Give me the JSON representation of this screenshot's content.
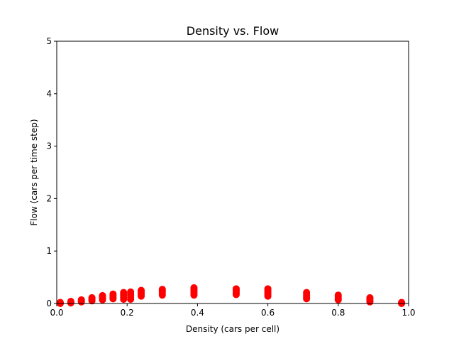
{
  "chart_data": {
    "type": "scatter",
    "title": "Density vs. Flow",
    "xlabel": "Density (cars per cell)",
    "ylabel": "Flow (cars per time step)",
    "xlim": [
      0,
      1
    ],
    "ylim": [
      0,
      5
    ],
    "xticks": [
      0.0,
      0.2,
      0.4,
      0.6,
      0.8,
      1.0
    ],
    "xtick_labels": [
      "0.0",
      "0.2",
      "0.4",
      "0.6",
      "0.8",
      "1.0"
    ],
    "yticks": [
      0,
      1,
      2,
      3,
      4,
      5
    ],
    "ytick_labels": [
      "0",
      "1",
      "2",
      "3",
      "4",
      "5"
    ],
    "grid": false,
    "series": [
      {
        "color": "#ff0000",
        "marker": "circle",
        "points": [
          {
            "x": 0.01,
            "y": 0.0
          },
          {
            "x": 0.01,
            "y": 0.01
          },
          {
            "x": 0.01,
            "y": 0.02
          },
          {
            "x": 0.04,
            "y": 0.01
          },
          {
            "x": 0.04,
            "y": 0.02
          },
          {
            "x": 0.04,
            "y": 0.04
          },
          {
            "x": 0.07,
            "y": 0.03
          },
          {
            "x": 0.07,
            "y": 0.05
          },
          {
            "x": 0.07,
            "y": 0.07
          },
          {
            "x": 0.1,
            "y": 0.05
          },
          {
            "x": 0.1,
            "y": 0.07
          },
          {
            "x": 0.1,
            "y": 0.09
          },
          {
            "x": 0.1,
            "y": 0.11
          },
          {
            "x": 0.13,
            "y": 0.07
          },
          {
            "x": 0.13,
            "y": 0.1
          },
          {
            "x": 0.13,
            "y": 0.13
          },
          {
            "x": 0.13,
            "y": 0.15
          },
          {
            "x": 0.16,
            "y": 0.09
          },
          {
            "x": 0.16,
            "y": 0.12
          },
          {
            "x": 0.16,
            "y": 0.15
          },
          {
            "x": 0.16,
            "y": 0.18
          },
          {
            "x": 0.19,
            "y": 0.08
          },
          {
            "x": 0.19,
            "y": 0.12
          },
          {
            "x": 0.19,
            "y": 0.16
          },
          {
            "x": 0.19,
            "y": 0.19
          },
          {
            "x": 0.19,
            "y": 0.21
          },
          {
            "x": 0.21,
            "y": 0.08
          },
          {
            "x": 0.21,
            "y": 0.12
          },
          {
            "x": 0.21,
            "y": 0.16
          },
          {
            "x": 0.21,
            "y": 0.19
          },
          {
            "x": 0.21,
            "y": 0.22
          },
          {
            "x": 0.24,
            "y": 0.14
          },
          {
            "x": 0.24,
            "y": 0.17
          },
          {
            "x": 0.24,
            "y": 0.2
          },
          {
            "x": 0.24,
            "y": 0.23
          },
          {
            "x": 0.24,
            "y": 0.25
          },
          {
            "x": 0.3,
            "y": 0.16
          },
          {
            "x": 0.3,
            "y": 0.19
          },
          {
            "x": 0.3,
            "y": 0.22
          },
          {
            "x": 0.3,
            "y": 0.25
          },
          {
            "x": 0.3,
            "y": 0.27
          },
          {
            "x": 0.39,
            "y": 0.16
          },
          {
            "x": 0.39,
            "y": 0.19
          },
          {
            "x": 0.39,
            "y": 0.22
          },
          {
            "x": 0.39,
            "y": 0.25
          },
          {
            "x": 0.39,
            "y": 0.28
          },
          {
            "x": 0.39,
            "y": 0.3
          },
          {
            "x": 0.51,
            "y": 0.17
          },
          {
            "x": 0.51,
            "y": 0.2
          },
          {
            "x": 0.51,
            "y": 0.23
          },
          {
            "x": 0.51,
            "y": 0.26
          },
          {
            "x": 0.51,
            "y": 0.28
          },
          {
            "x": 0.6,
            "y": 0.14
          },
          {
            "x": 0.6,
            "y": 0.17
          },
          {
            "x": 0.6,
            "y": 0.2
          },
          {
            "x": 0.6,
            "y": 0.23
          },
          {
            "x": 0.6,
            "y": 0.26
          },
          {
            "x": 0.6,
            "y": 0.28
          },
          {
            "x": 0.71,
            "y": 0.09
          },
          {
            "x": 0.71,
            "y": 0.12
          },
          {
            "x": 0.71,
            "y": 0.15
          },
          {
            "x": 0.71,
            "y": 0.18
          },
          {
            "x": 0.71,
            "y": 0.21
          },
          {
            "x": 0.8,
            "y": 0.07
          },
          {
            "x": 0.8,
            "y": 0.1
          },
          {
            "x": 0.8,
            "y": 0.13
          },
          {
            "x": 0.8,
            "y": 0.16
          },
          {
            "x": 0.89,
            "y": 0.03
          },
          {
            "x": 0.89,
            "y": 0.06
          },
          {
            "x": 0.89,
            "y": 0.09
          },
          {
            "x": 0.89,
            "y": 0.11
          },
          {
            "x": 0.98,
            "y": 0.0
          },
          {
            "x": 0.98,
            "y": 0.01
          },
          {
            "x": 0.98,
            "y": 0.02
          }
        ]
      }
    ]
  }
}
